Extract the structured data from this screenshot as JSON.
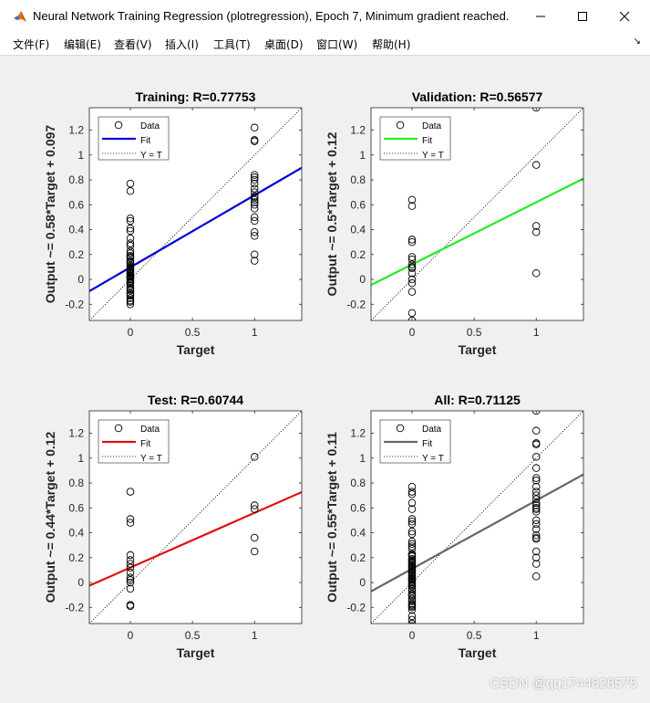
{
  "window": {
    "title": "Neural Network Training Regression (plotregression), Epoch 7, Minimum gradient reached."
  },
  "menu": [
    "文件(F)",
    "编辑(E)",
    "查看(V)",
    "插入(I)",
    "工具(T)",
    "桌面(D)",
    "窗口(W)",
    "帮助(H)"
  ],
  "watermark": "CSDN @qq1744828575",
  "chart_data": [
    {
      "type": "scatter",
      "title": "Training: R=0.77753",
      "xlabel": "Target",
      "ylabel": "Output ~= 0.58*Target + 0.097",
      "xlim": [
        -0.33,
        1.38
      ],
      "ylim": [
        -0.33,
        1.38
      ],
      "xticks": [
        0,
        0.5,
        1
      ],
      "xtick_labels": [
        "0",
        "0.5",
        "1"
      ],
      "yticks": [
        -0.2,
        0,
        0.2,
        0.4,
        0.6,
        0.8,
        1,
        1.2
      ],
      "ytick_labels": [
        "-0.2",
        "0",
        "0.2",
        "0.4",
        "0.6",
        "0.8",
        "1",
        "1.2"
      ],
      "fit": {
        "slope": 0.58,
        "intercept": 0.097,
        "color": "#0000d8"
      },
      "legend": [
        "Data",
        "Fit",
        "Y = T"
      ],
      "legend_position": "top-left",
      "data": {
        "x": [
          0,
          0,
          0,
          0,
          0,
          0,
          0,
          0,
          0,
          0,
          0,
          0,
          0,
          0,
          0,
          0,
          0,
          0,
          0,
          0,
          0,
          0,
          0,
          0,
          0,
          0,
          0,
          0,
          0,
          0,
          0,
          0,
          0,
          0,
          0,
          0,
          0,
          0,
          0,
          0,
          0,
          0,
          0,
          0,
          0,
          1,
          1,
          1,
          1,
          1,
          1,
          1,
          1,
          1,
          1,
          1,
          1,
          1,
          1,
          1,
          1,
          1,
          1,
          1,
          1,
          1
        ],
        "y": [
          0.77,
          0.71,
          0.49,
          0.47,
          0.41,
          0.39,
          0.33,
          0.29,
          0.27,
          0.23,
          0.21,
          0.19,
          0.17,
          0.15,
          0.13,
          0.11,
          0.09,
          0.08,
          0.07,
          0.06,
          0.05,
          0.04,
          0.03,
          0.02,
          0.01,
          0.0,
          -0.01,
          -0.02,
          -0.03,
          -0.05,
          -0.07,
          -0.09,
          -0.11,
          -0.13,
          -0.15,
          -0.18,
          -0.2,
          -0.17,
          -0.12,
          -0.08,
          0.02,
          0.06,
          0.1,
          0.14,
          0.18,
          1.22,
          1.12,
          1.11,
          0.84,
          0.82,
          0.77,
          0.73,
          0.7,
          0.67,
          0.64,
          0.62,
          0.57,
          0.5,
          0.47,
          0.38,
          0.35,
          0.2,
          0.15,
          0.6,
          0.66,
          0.8
        ]
      }
    },
    {
      "type": "scatter",
      "title": "Validation: R=0.56577",
      "xlabel": "Target",
      "ylabel": "Output ~= 0.5*Target + 0.12",
      "xlim": [
        -0.33,
        1.38
      ],
      "ylim": [
        -0.33,
        1.38
      ],
      "xticks": [
        0,
        0.5,
        1
      ],
      "xtick_labels": [
        "0",
        "0.5",
        "1"
      ],
      "yticks": [
        -0.2,
        0,
        0.2,
        0.4,
        0.6,
        0.8,
        1,
        1.2
      ],
      "ytick_labels": [
        "-0.2",
        "0",
        "0.2",
        "0.4",
        "0.6",
        "0.8",
        "1",
        "1.2"
      ],
      "fit": {
        "slope": 0.5,
        "intercept": 0.12,
        "color": "#22ee22"
      },
      "legend": [
        "Data",
        "Fit",
        "Y = T"
      ],
      "legend_position": "top-left",
      "data": {
        "x": [
          0,
          0,
          0,
          0,
          0,
          0,
          0,
          0,
          0,
          0,
          0,
          0,
          0,
          0,
          0,
          1,
          1,
          1,
          1,
          1
        ],
        "y": [
          0.64,
          0.59,
          0.32,
          0.3,
          0.18,
          0.16,
          0.12,
          0.1,
          0.09,
          0.05,
          0.0,
          -0.03,
          -0.1,
          -0.27,
          -0.33,
          1.38,
          0.92,
          0.43,
          0.38,
          0.05
        ]
      }
    },
    {
      "type": "scatter",
      "title": "Test: R=0.60744",
      "xlabel": "Target",
      "ylabel": "Output ~= 0.44*Target + 0.12",
      "xlim": [
        -0.33,
        1.38
      ],
      "ylim": [
        -0.33,
        1.38
      ],
      "xticks": [
        0,
        0.5,
        1
      ],
      "xtick_labels": [
        "0",
        "0.5",
        "1"
      ],
      "yticks": [
        -0.2,
        0,
        0.2,
        0.4,
        0.6,
        0.8,
        1,
        1.2
      ],
      "ytick_labels": [
        "-0.2",
        "0",
        "0.2",
        "0.4",
        "0.6",
        "0.8",
        "1",
        "1.2"
      ],
      "fit": {
        "slope": 0.44,
        "intercept": 0.12,
        "color": "#e01010"
      },
      "legend": [
        "Data",
        "Fit",
        "Y = T"
      ],
      "legend_position": "top-left",
      "data": {
        "x": [
          0,
          0,
          0,
          0,
          0,
          0,
          0,
          0,
          0,
          0,
          0,
          0,
          0,
          0,
          1,
          1,
          1,
          1,
          1
        ],
        "y": [
          0.73,
          0.51,
          0.48,
          0.22,
          0.18,
          0.15,
          0.12,
          0.08,
          0.04,
          0.02,
          0.0,
          -0.05,
          -0.18,
          -0.19,
          1.01,
          0.62,
          0.59,
          0.36,
          0.25
        ]
      }
    },
    {
      "type": "scatter",
      "title": "All: R=0.71125",
      "xlabel": "Target",
      "ylabel": "Output ~= 0.55*Target + 0.11",
      "xlim": [
        -0.33,
        1.38
      ],
      "ylim": [
        -0.33,
        1.38
      ],
      "xticks": [
        0,
        0.5,
        1
      ],
      "xtick_labels": [
        "0",
        "0.5",
        "1"
      ],
      "yticks": [
        -0.2,
        0,
        0.2,
        0.4,
        0.6,
        0.8,
        1,
        1.2
      ],
      "ytick_labels": [
        "-0.2",
        "0",
        "0.2",
        "0.4",
        "0.6",
        "0.8",
        "1",
        "1.2"
      ],
      "fit": {
        "slope": 0.55,
        "intercept": 0.11,
        "color": "#666666"
      },
      "legend": [
        "Data",
        "Fit",
        "Y = T"
      ],
      "legend_position": "top-left",
      "data": {
        "x": [
          0,
          0,
          0,
          0,
          0,
          0,
          0,
          0,
          0,
          0,
          0,
          0,
          0,
          0,
          0,
          0,
          0,
          0,
          0,
          0,
          0,
          0,
          0,
          0,
          0,
          0,
          0,
          0,
          0,
          0,
          0,
          0,
          0,
          0,
          0,
          0,
          0,
          0,
          0,
          0,
          0,
          0,
          0,
          0,
          0,
          0,
          0,
          0,
          0,
          0,
          0,
          0,
          0,
          0,
          0,
          1,
          1,
          1,
          1,
          1,
          1,
          1,
          1,
          1,
          1,
          1,
          1,
          1,
          1,
          1,
          1,
          1,
          1,
          1,
          1,
          1,
          1,
          1,
          1,
          1,
          1,
          1
        ],
        "y": [
          0.77,
          0.73,
          0.71,
          0.64,
          0.59,
          0.51,
          0.49,
          0.47,
          0.41,
          0.39,
          0.33,
          0.31,
          0.29,
          0.27,
          0.23,
          0.22,
          0.21,
          0.19,
          0.18,
          0.17,
          0.16,
          0.15,
          0.13,
          0.12,
          0.11,
          0.1,
          0.09,
          0.08,
          0.07,
          0.06,
          0.05,
          0.04,
          0.03,
          0.02,
          0.01,
          0.0,
          -0.01,
          -0.02,
          -0.03,
          -0.05,
          -0.07,
          -0.09,
          -0.1,
          -0.11,
          -0.13,
          -0.15,
          -0.17,
          -0.18,
          -0.19,
          -0.2,
          -0.22,
          -0.27,
          -0.3,
          -0.33,
          0.14,
          1.38,
          1.22,
          1.12,
          1.11,
          1.01,
          0.92,
          0.84,
          0.82,
          0.77,
          0.73,
          0.7,
          0.67,
          0.64,
          0.62,
          0.6,
          0.57,
          0.5,
          0.47,
          0.43,
          0.38,
          0.36,
          0.35,
          0.25,
          0.2,
          0.15,
          0.05,
          0.59
        ]
      }
    }
  ]
}
